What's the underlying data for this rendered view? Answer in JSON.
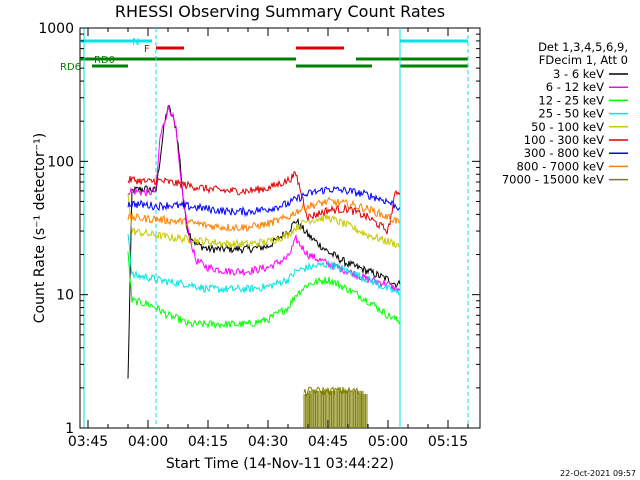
{
  "chart_data": {
    "type": "line",
    "title": "RHESSI Observing Summary Count Rates",
    "xlabel": "Start Time (14-Nov-11 03:44:22)",
    "ylabel": "Count Rate (s⁻¹ detector⁻¹)",
    "yscale": "log",
    "ylim": [
      1,
      1000
    ],
    "xlim": [
      "03:43",
      "05:23"
    ],
    "x_ticks": [
      "03:45",
      "04:00",
      "04:15",
      "04:30",
      "04:45",
      "05:00",
      "05:15"
    ],
    "y_ticks": [
      "1",
      "10",
      "100",
      "1000"
    ],
    "legend_header": [
      "Det 1,3,4,5,6,9,",
      "FDecim 1, Att 0"
    ],
    "legend_position": "right",
    "grid": false,
    "date_stamp": "22-Oct-2021 09:57",
    "status_bars": [
      {
        "label": "N",
        "color": "#00e5e5",
        "segments": [
          [
            "03:43",
            "04:01"
          ],
          [
            "05:03",
            "05:20"
          ]
        ]
      },
      {
        "label": "F",
        "color": "#e00000",
        "segments": [
          [
            "04:02",
            "04:09"
          ],
          [
            "04:37",
            "04:49"
          ]
        ]
      },
      {
        "label": "RD0",
        "color": "#008000",
        "segments": [
          [
            "03:43",
            "04:37"
          ],
          [
            "04:52",
            "05:20"
          ]
        ]
      },
      {
        "label": "RD6",
        "color": "#008000",
        "segments": [
          [
            "03:46",
            "03:55"
          ],
          [
            "04:37",
            "04:56"
          ],
          [
            "05:03",
            "05:20"
          ]
        ]
      }
    ],
    "dashed_verticals": [
      "04:02",
      "05:20"
    ],
    "solid_verticals": [
      "03:44",
      "05:03"
    ],
    "series": [
      {
        "name": "3 - 6 keV",
        "color": "#000000",
        "x": [
          "03:55",
          "03:56",
          "03:58",
          "04:00",
          "04:02",
          "04:04",
          "04:05",
          "04:06",
          "04:07",
          "04:08",
          "04:09",
          "04:10",
          "04:12",
          "04:15",
          "04:20",
          "04:25",
          "04:30",
          "04:35",
          "04:37",
          "04:40",
          "04:45",
          "04:50",
          "04:55",
          "05:00",
          "05:02",
          "05:03"
        ],
        "y": [
          2.3,
          60,
          62,
          62,
          60,
          180,
          260,
          220,
          180,
          100,
          45,
          30,
          24,
          22,
          22,
          22,
          23,
          30,
          36,
          28,
          21,
          17,
          15,
          13,
          12,
          12
        ]
      },
      {
        "name": "6 - 12 keV",
        "color": "#ff00ff",
        "x": [
          "03:55",
          "03:56",
          "04:00",
          "04:02",
          "04:03",
          "04:05",
          "04:06",
          "04:07",
          "04:08",
          "04:10",
          "04:12",
          "04:15",
          "04:20",
          "04:25",
          "04:30",
          "04:35",
          "04:37",
          "04:40",
          "04:45",
          "04:50",
          "04:55",
          "05:00",
          "05:02",
          "05:03"
        ],
        "y": [
          60,
          60,
          58,
          60,
          150,
          250,
          230,
          170,
          80,
          30,
          18,
          16,
          15,
          15,
          16,
          19,
          26,
          20,
          17,
          15,
          13,
          12,
          11,
          11
        ]
      },
      {
        "name": "12 - 25 keV",
        "color": "#00ff00",
        "x": [
          "03:55",
          "03:56",
          "04:00",
          "04:02",
          "04:05",
          "04:08",
          "04:10",
          "04:15",
          "04:20",
          "04:25",
          "04:30",
          "04:35",
          "04:37",
          "04:40",
          "04:45",
          "04:50",
          "04:55",
          "05:00",
          "05:02",
          "05:03"
        ],
        "y": [
          20,
          9,
          8.5,
          8,
          7,
          6.5,
          6,
          6,
          6,
          6,
          6.5,
          8,
          10,
          12,
          13,
          11,
          9,
          7,
          6.5,
          6.2
        ]
      },
      {
        "name": "25 - 50 keV",
        "color": "#00e5e5",
        "x": [
          "03:55",
          "03:56",
          "04:00",
          "04:02",
          "04:05",
          "04:10",
          "04:15",
          "04:20",
          "04:25",
          "04:30",
          "04:35",
          "04:37",
          "04:40",
          "04:45",
          "04:50",
          "04:55",
          "05:00",
          "05:02",
          "05:03"
        ],
        "y": [
          30,
          14,
          13.5,
          13,
          12.5,
          12,
          11,
          11,
          11,
          11.5,
          13,
          15,
          16,
          17,
          15,
          13,
          11,
          10.5,
          10
        ]
      },
      {
        "name": "50 - 100 keV",
        "color": "#c8c800",
        "x": [
          "03:55",
          "03:56",
          "04:00",
          "04:02",
          "04:05",
          "04:10",
          "04:15",
          "04:20",
          "04:25",
          "04:30",
          "04:35",
          "04:37",
          "04:40",
          "04:45",
          "04:50",
          "04:55",
          "05:00",
          "05:02",
          "05:03"
        ],
        "y": [
          60,
          30,
          28.5,
          28,
          27,
          26,
          25,
          24,
          24,
          25,
          28,
          32,
          36,
          38,
          33,
          28,
          25,
          24,
          23
        ]
      },
      {
        "name": "100 - 300 keV",
        "color": "#e00000",
        "x": [
          "03:55",
          "03:56",
          "04:00",
          "04:02",
          "04:05",
          "04:10",
          "04:15",
          "04:20",
          "04:25",
          "04:30",
          "04:35",
          "04:37",
          "04:40",
          "04:45",
          "04:50",
          "04:55",
          "05:00",
          "05:02",
          "05:03"
        ],
        "y": [
          72,
          73,
          70,
          72,
          70,
          66,
          62,
          60,
          60,
          63,
          72,
          80,
          38,
          43,
          44,
          38,
          30,
          60,
          58
        ]
      },
      {
        "name": "300 - 800 keV",
        "color": "#0000ff",
        "x": [
          "03:55",
          "03:56",
          "04:00",
          "04:02",
          "04:05",
          "04:10",
          "04:15",
          "04:20",
          "04:25",
          "04:30",
          "04:35",
          "04:37",
          "04:40",
          "04:45",
          "04:50",
          "04:55",
          "05:00",
          "05:02",
          "05:03"
        ],
        "y": [
          48,
          48,
          47,
          46,
          47,
          46,
          44,
          42,
          42,
          44,
          48,
          52,
          57,
          62,
          60,
          56,
          50,
          46,
          45
        ]
      },
      {
        "name": "800 - 7000 keV",
        "color": "#ff8000",
        "x": [
          "03:55",
          "03:56",
          "04:00",
          "04:02",
          "04:05",
          "04:10",
          "04:15",
          "04:20",
          "04:25",
          "04:30",
          "04:35",
          "04:37",
          "04:40",
          "04:45",
          "04:50",
          "04:55",
          "05:00",
          "05:02",
          "05:03"
        ],
        "y": [
          38,
          38,
          37,
          37,
          36,
          35,
          33,
          32,
          32,
          34,
          38,
          42,
          46,
          50,
          48,
          44,
          38,
          36,
          35
        ]
      },
      {
        "name": "7000 - 15000 keV",
        "color": "#808000",
        "x": [
          "04:39",
          "04:40",
          "04:42",
          "04:44",
          "04:46",
          "04:48",
          "04:50",
          "04:52",
          "04:53"
        ],
        "y": [
          1.8,
          1.9,
          1.9,
          1.9,
          1.9,
          1.9,
          1.9,
          1.9,
          1.8
        ]
      }
    ]
  }
}
